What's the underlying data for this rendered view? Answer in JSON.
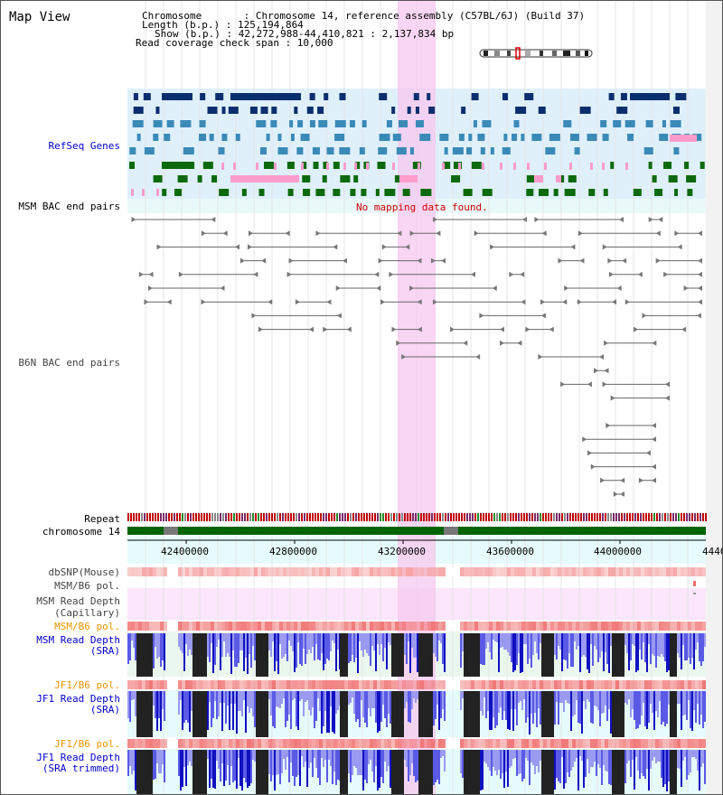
{
  "header": {
    "title": "Map View",
    "info_lines": [
      "Chromosome       : Chromosome 14, reference assembly (C57BL/6J) (Build 37)",
      "Length (b.p.) : 125,194,864",
      "Show (b.p.) : 42,272,988-44,410,821 : 2,137,834 bp",
      "Read coverage check span : 10,000"
    ]
  },
  "tracks": {
    "refseq_label": "RefSeq Genes",
    "msm_bac_label": "MSM BAC end pairs",
    "msm_bac_message": "No mapping data found.",
    "b6n_bac_label": "B6N BAC end pairs",
    "repeat_label": "Repeat",
    "chromosome_label": "chromosome 14",
    "dbsnp_label": "dbSNP(Mouse)",
    "msm_b6_pol_label_1": "MSM/B6 pol.",
    "msm_read_depth_cap_label": "MSM Read Depth",
    "msm_read_depth_cap_sub": "(Capillary)",
    "msm_b6_pol_label_2": "MSM/B6 pol.",
    "msm_read_depth_sra_label": "MSM Read Depth",
    "msm_read_depth_sra_sub": "(SRA)",
    "jf1_b6_pol_label_1": "JF1/B6 pol.",
    "jf1_read_depth_sra_label": "JF1 Read Depth",
    "jf1_read_depth_sra_sub": "(SRA)",
    "jf1_b6_pol_label_2": "JF1/B6 pol.",
    "jf1_read_depth_trim_label": "JF1 Read Depth",
    "jf1_read_depth_trim_sub": "(SRA trimmed)"
  },
  "axis": {
    "ticks": [
      "42400000",
      "42800000",
      "43200000",
      "43600000",
      "44000000",
      "4440"
    ]
  },
  "colors": {
    "refseq_bg": "#dff0fb",
    "highlight": "#f7c8ef",
    "gene_dark": "#0b2f6e",
    "gene_teal": "#3a8ab8",
    "gene_green": "#0c6a0c",
    "gene_pink": "#ff9ccc",
    "chromosome": "#006400",
    "label_blue": "#0000cc",
    "label_orange": "#e69500",
    "message_red": "#cc0000"
  }
}
